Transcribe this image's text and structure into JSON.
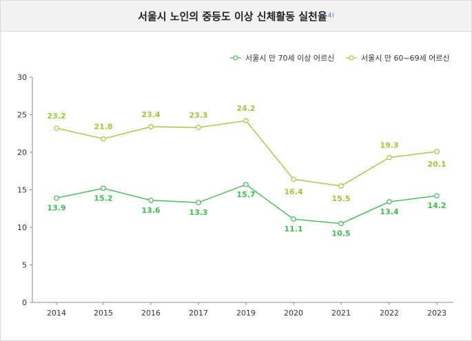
{
  "chart_data": {
    "type": "line",
    "title": "서울시 노인의 중등도 이상 신체활동 실천율",
    "title_footnote": "4)",
    "categories": [
      "2014",
      "2015",
      "2016",
      "2017",
      "2019",
      "2020",
      "2021",
      "2022",
      "2023"
    ],
    "ylim": [
      0,
      30
    ],
    "yticks": [
      0,
      5,
      10,
      15,
      20,
      25,
      30
    ],
    "legend_position": "top-right",
    "series": [
      {
        "name": "서울시 만 70세 이상 어르신",
        "color": "#3bbf4c",
        "values": [
          13.9,
          15.2,
          13.6,
          13.3,
          15.7,
          11.1,
          10.5,
          13.4,
          14.2
        ],
        "label_position": "below"
      },
      {
        "name": "서울시 만 60~69세 어르신",
        "color": "#99cc33",
        "values": [
          23.2,
          21.8,
          23.4,
          23.3,
          24.2,
          16.4,
          15.5,
          19.3,
          20.1
        ],
        "label_position": "mixed"
      }
    ]
  }
}
